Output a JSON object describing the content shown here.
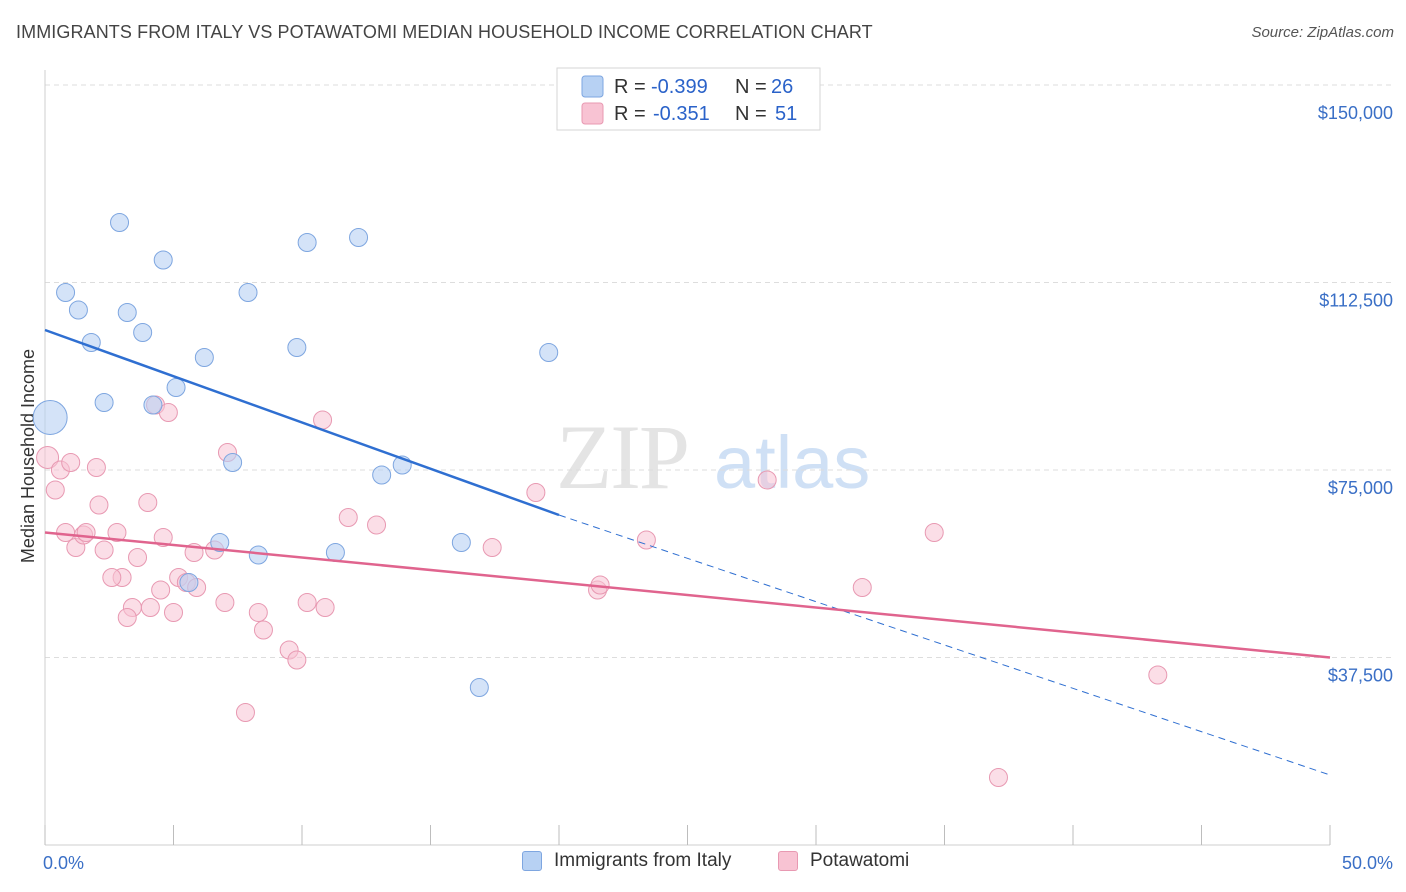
{
  "title": "IMMIGRANTS FROM ITALY VS POTAWATOMI MEDIAN HOUSEHOLD INCOME CORRELATION CHART",
  "source": "Source: ZipAtlas.com",
  "watermark": {
    "zip": "ZIP",
    "atlas": "atlas"
  },
  "legend": {
    "rows": [
      {
        "r_label": "R = ",
        "r_value": "-0.399",
        "n_label": "N = ",
        "n_value": "26"
      },
      {
        "r_label": "R = ",
        "r_value": "-0.351",
        "n_label": "N = ",
        "n_value": "51"
      }
    ]
  },
  "colors": {
    "italy_fill": "#b7d1f3",
    "italy_stroke": "#7ea6e0",
    "italy_line": "#2f6fd1",
    "pota_fill": "#f8c3d3",
    "pota_stroke": "#e899b2",
    "pota_line": "#e0648e",
    "tick_text": "#3a6fc6",
    "grid": "#dddddd"
  },
  "chart_data": {
    "type": "scatter",
    "title": "IMMIGRANTS FROM ITALY VS POTAWATOMI MEDIAN HOUSEHOLD INCOME CORRELATION CHART",
    "xlabel": "",
    "ylabel": "Median Household Income",
    "xlim": [
      0,
      50
    ],
    "ylim": [
      0,
      155000
    ],
    "x_tick_labels": [
      "0.0%",
      "50.0%"
    ],
    "y_ticks": [
      37500,
      75000,
      112500,
      150000
    ],
    "y_tick_labels": [
      "$37,500",
      "$75,000",
      "$112,500",
      "$150,000"
    ],
    "grid": true,
    "legend_position": "top-center",
    "series": [
      {
        "name": "Immigrants from Italy",
        "r": -0.399,
        "n": 26,
        "points": [
          [
            0.2,
            85500,
            34
          ],
          [
            2.9,
            124500,
            18
          ],
          [
            4.6,
            117000,
            18
          ],
          [
            0.8,
            110500,
            18
          ],
          [
            1.3,
            107000,
            18
          ],
          [
            3.2,
            106500,
            18
          ],
          [
            3.8,
            102500,
            18
          ],
          [
            1.8,
            100500,
            18
          ],
          [
            7.9,
            110500,
            18
          ],
          [
            10.2,
            120500,
            18
          ],
          [
            12.2,
            121500,
            18
          ],
          [
            9.8,
            99500,
            18
          ],
          [
            6.2,
            97500,
            18
          ],
          [
            5.1,
            91500,
            18
          ],
          [
            2.3,
            88500,
            18
          ],
          [
            4.2,
            88000,
            18
          ],
          [
            7.3,
            76500,
            18
          ],
          [
            13.1,
            74000,
            18
          ],
          [
            13.9,
            76000,
            18
          ],
          [
            19.6,
            98500,
            18
          ],
          [
            6.8,
            60500,
            18
          ],
          [
            8.3,
            58000,
            18
          ],
          [
            11.3,
            58500,
            18
          ],
          [
            16.2,
            60500,
            18
          ],
          [
            5.6,
            52500,
            18
          ],
          [
            16.9,
            31500,
            18
          ]
        ],
        "trend": {
          "x": [
            0,
            20
          ],
          "y": [
            103000,
            66000
          ]
        },
        "trend_extension": {
          "x": [
            20,
            50
          ],
          "y": [
            66000,
            14000
          ]
        }
      },
      {
        "name": "Potawatomi",
        "r": -0.351,
        "n": 51,
        "points": [
          [
            0.1,
            77500,
            22
          ],
          [
            0.4,
            71000,
            18
          ],
          [
            0.6,
            75000,
            18
          ],
          [
            1.0,
            76500,
            18
          ],
          [
            2.0,
            75500,
            18
          ],
          [
            0.8,
            62500,
            18
          ],
          [
            1.2,
            59500,
            18
          ],
          [
            1.5,
            62000,
            18
          ],
          [
            1.6,
            62500,
            18
          ],
          [
            2.1,
            68000,
            18
          ],
          [
            2.8,
            62500,
            18
          ],
          [
            2.3,
            59000,
            18
          ],
          [
            3.0,
            53500,
            18
          ],
          [
            3.6,
            57500,
            18
          ],
          [
            4.0,
            68500,
            18
          ],
          [
            4.3,
            88000,
            18
          ],
          [
            4.8,
            86500,
            18
          ],
          [
            4.6,
            61500,
            18
          ],
          [
            2.6,
            53500,
            18
          ],
          [
            3.4,
            47500,
            18
          ],
          [
            3.2,
            45500,
            18
          ],
          [
            4.1,
            47500,
            18
          ],
          [
            4.5,
            51000,
            18
          ],
          [
            5.0,
            46500,
            18
          ],
          [
            5.2,
            53500,
            18
          ],
          [
            5.5,
            52500,
            18
          ],
          [
            5.9,
            51500,
            18
          ],
          [
            5.8,
            58500,
            18
          ],
          [
            6.6,
            59000,
            18
          ],
          [
            7.1,
            78500,
            18
          ],
          [
            7.0,
            48500,
            18
          ],
          [
            8.3,
            46500,
            18
          ],
          [
            8.5,
            43000,
            18
          ],
          [
            9.5,
            39000,
            18
          ],
          [
            9.8,
            37000,
            18
          ],
          [
            10.2,
            48500,
            18
          ],
          [
            10.9,
            47500,
            18
          ],
          [
            10.8,
            85000,
            18
          ],
          [
            11.8,
            65500,
            18
          ],
          [
            12.9,
            64000,
            18
          ],
          [
            7.8,
            26500,
            18
          ],
          [
            17.4,
            59500,
            18
          ],
          [
            19.1,
            70500,
            18
          ],
          [
            21.5,
            51000,
            18
          ],
          [
            21.6,
            52000,
            18
          ],
          [
            23.4,
            61000,
            18
          ],
          [
            28.1,
            73000,
            18
          ],
          [
            31.8,
            51500,
            18
          ],
          [
            34.6,
            62500,
            18
          ],
          [
            43.3,
            34000,
            18
          ],
          [
            37.1,
            13500,
            18
          ]
        ],
        "trend": {
          "x": [
            0,
            50
          ],
          "y": [
            62500,
            37500
          ]
        }
      }
    ]
  },
  "bottom_legend": [
    {
      "label": "Immigrants from Italy"
    },
    {
      "label": "Potawatomi"
    }
  ]
}
